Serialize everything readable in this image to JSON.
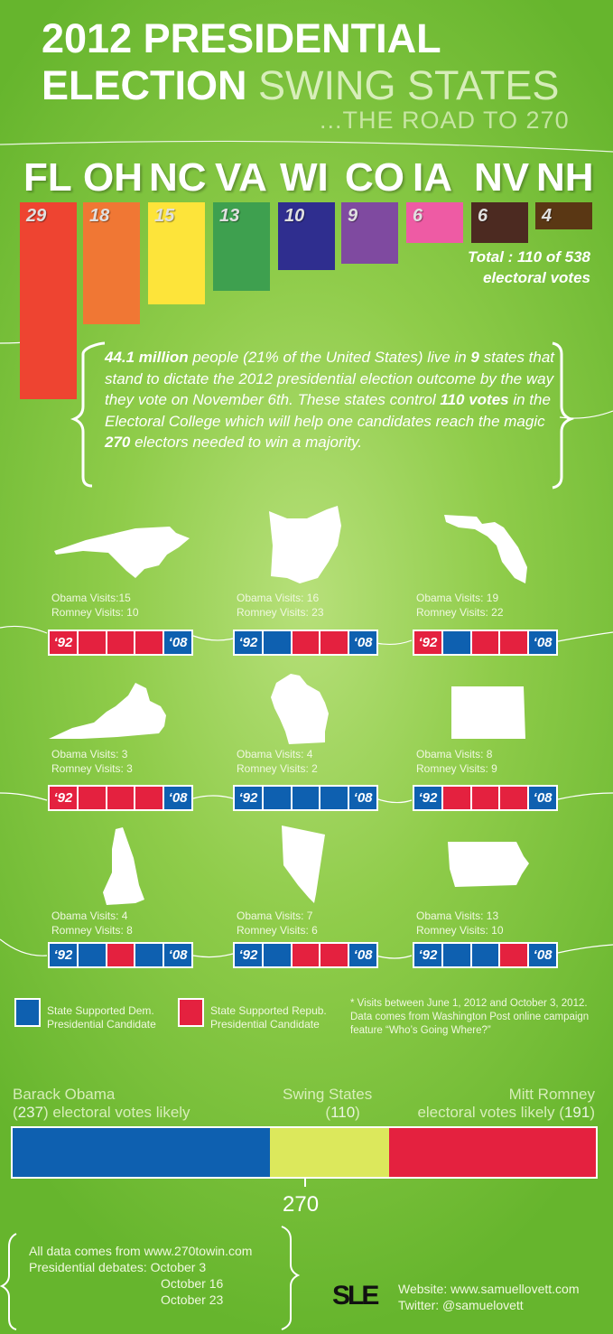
{
  "header": {
    "title_line1": "2012 PRESIDENTIAL",
    "title_line2_bold": "ELECTION",
    "title_line2_light": " SWING STATES",
    "subtitle": "...THE ROAD TO 270"
  },
  "chart_data": [
    {
      "type": "bar",
      "categories": [
        "FL",
        "OH",
        "NC",
        "VA",
        "WI",
        "CO",
        "IA",
        "NV",
        "NH"
      ],
      "values": [
        29,
        18,
        15,
        13,
        10,
        9,
        6,
        6,
        4
      ],
      "colors": [
        "#ee4431",
        "#f07734",
        "#fde43a",
        "#3ea04f",
        "#2f2e8f",
        "#7f4aa0",
        "#ee5ba4",
        "#4c2a21",
        "#5a3714"
      ],
      "total_text_line1": "Total : 110 of 538",
      "total_text_line2": "electoral votes"
    },
    {
      "type": "bar",
      "subtype": "stacked",
      "categories": [
        "Barack Obama",
        "Swing States",
        "Mitt Romney"
      ],
      "values": [
        237,
        110,
        191
      ],
      "colors": [
        "#0e60b0",
        "#dce85c",
        "#e4213f"
      ],
      "threshold": 270,
      "threshold_label": "270",
      "labels": {
        "obama_name": "Barack Obama",
        "obama_line2a": "(",
        "obama_num": "237",
        "obama_line2b": ") electoral votes likely",
        "swing_name": "Swing States",
        "swing_line2a": "(",
        "swing_num": "110",
        "swing_line2b": ")",
        "romney_name": "Mitt Romney",
        "romney_line2a": "electoral votes likely (",
        "romney_num": "191",
        "romney_line2b": ")"
      }
    }
  ],
  "summary": {
    "p1_bold1": "44.1 million",
    "p1_text1": " people (21% of the United States) live in ",
    "p1_bold2": "9",
    "p1_text2": " states that stand to dictate the 2012 presidential election outcome by the way they vote on November 6th. These states control ",
    "p1_bold3": "110 votes",
    "p1_text3": " in the Electoral College which will help one candidates reach the magic ",
    "p1_bold4": "270",
    "p1_text4": " electors needed to win a majority."
  },
  "states": [
    {
      "id": "nc",
      "obama": "Obama Visits:15",
      "romney": "Romney Visits: 10",
      "history": [
        "R",
        "R",
        "R",
        "R",
        "D"
      ],
      "first": "‘92",
      "last": "‘08"
    },
    {
      "id": "oh",
      "obama": "Obama Visits: 16",
      "romney": "Romney Visits: 23",
      "history": [
        "D",
        "D",
        "R",
        "R",
        "D"
      ],
      "first": "‘92",
      "last": "‘08"
    },
    {
      "id": "fl",
      "obama": "Obama Visits: 19",
      "romney": "Romney Visits: 22",
      "history": [
        "R",
        "D",
        "R",
        "R",
        "D"
      ],
      "first": "‘92",
      "last": "‘08"
    },
    {
      "id": "va",
      "obama": "Obama Visits: 3",
      "romney": "Romney Visits: 3",
      "history": [
        "R",
        "R",
        "R",
        "R",
        "D"
      ],
      "first": "‘92",
      "last": "‘08"
    },
    {
      "id": "wi",
      "obama": "Obama Visits: 4",
      "romney": "Romney Visits: 2",
      "history": [
        "D",
        "D",
        "D",
        "D",
        "D"
      ],
      "first": "‘92",
      "last": "‘08"
    },
    {
      "id": "co",
      "obama": "Obama Visits: 8",
      "romney": "Romney Visits: 9",
      "history": [
        "D",
        "R",
        "R",
        "R",
        "D"
      ],
      "first": "‘92",
      "last": "‘08"
    },
    {
      "id": "nh",
      "obama": "Obama Visits: 4",
      "romney": "Romney Visits: 8",
      "history": [
        "D",
        "D",
        "R",
        "D",
        "D"
      ],
      "first": "‘92",
      "last": "‘08"
    },
    {
      "id": "nv",
      "obama": "Obama Visits: 7",
      "romney": "Romney Visits: 6",
      "history": [
        "D",
        "D",
        "R",
        "R",
        "D"
      ],
      "first": "‘92",
      "last": "‘08"
    },
    {
      "id": "ia",
      "obama": "Obama Visits: 13",
      "romney": "Romney Visits: 10",
      "history": [
        "D",
        "D",
        "D",
        "R",
        "D"
      ],
      "first": "‘92",
      "last": "‘08"
    }
  ],
  "legend": {
    "dem_line1": "State Supported Dem.",
    "dem_line2": "Presidential Candidate",
    "rep_line1": "State Supported Repub.",
    "rep_line2": "Presidential Candidate",
    "dem_color": "#0e60b0",
    "rep_color": "#e4213f",
    "note": "* Visits between June 1, 2012 and October 3, 2012. Data comes from Washington Post online campaign feature “Who’s Going Where?”"
  },
  "footer": {
    "line1": "All data comes from www.270towin.com",
    "line2": "Presidential debates: October 3",
    "line3": "October 16",
    "line4": "October 23",
    "logo": "SLE",
    "website": "Website: www.samuellovett.com",
    "twitter": "Twitter: @samuelovett"
  }
}
